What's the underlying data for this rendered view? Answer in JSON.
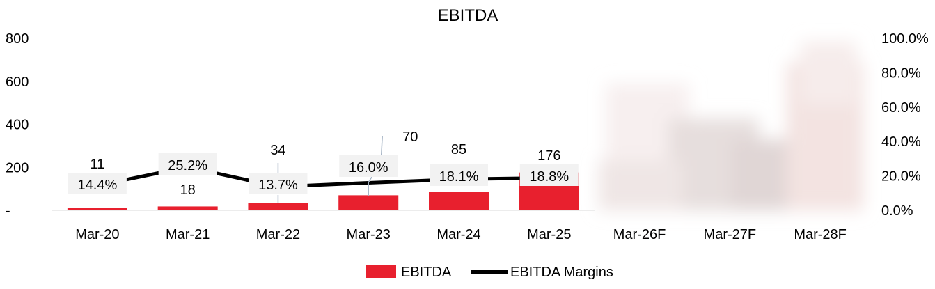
{
  "chart_data": {
    "type": "bar+line",
    "title": "EBITDA",
    "categories": [
      "Mar-20",
      "Mar-21",
      "Mar-22",
      "Mar-23",
      "Mar-24",
      "Mar-25",
      "Mar-26F",
      "Mar-27F",
      "Mar-28F"
    ],
    "series": [
      {
        "name": "EBITDA",
        "type": "bar",
        "axis": "left",
        "color": "#E8202E",
        "values": [
          11,
          18,
          34,
          70,
          85,
          176,
          null,
          null,
          null
        ],
        "labels": [
          "11",
          "18",
          "34",
          "70",
          "85",
          "176",
          "",
          "",
          ""
        ]
      },
      {
        "name": "EBITDA Margins",
        "type": "line",
        "axis": "right",
        "color": "#000000",
        "values": [
          14.4,
          25.2,
          13.7,
          16.0,
          18.1,
          18.8,
          null,
          null,
          null
        ],
        "labels": [
          "14.4%",
          "25.2%",
          "13.7%",
          "16.0%",
          "18.1%",
          "18.8%",
          "",
          "",
          ""
        ]
      }
    ],
    "y_left": {
      "min": 0,
      "max": 800,
      "ticks": [
        0,
        200,
        400,
        600,
        800
      ],
      "tick_labels": [
        "-",
        "200",
        "400",
        "600",
        "800"
      ]
    },
    "y_right": {
      "min": 0,
      "max": 100,
      "ticks": [
        0,
        20,
        40,
        60,
        80,
        100
      ],
      "tick_labels": [
        "0.0%",
        "20.0%",
        "40.0%",
        "60.0%",
        "80.0%",
        "100.0%"
      ]
    },
    "grid": false,
    "legend_position": "bottom",
    "obscured_region": "Mar-26F to Mar-28F (blurred)"
  }
}
